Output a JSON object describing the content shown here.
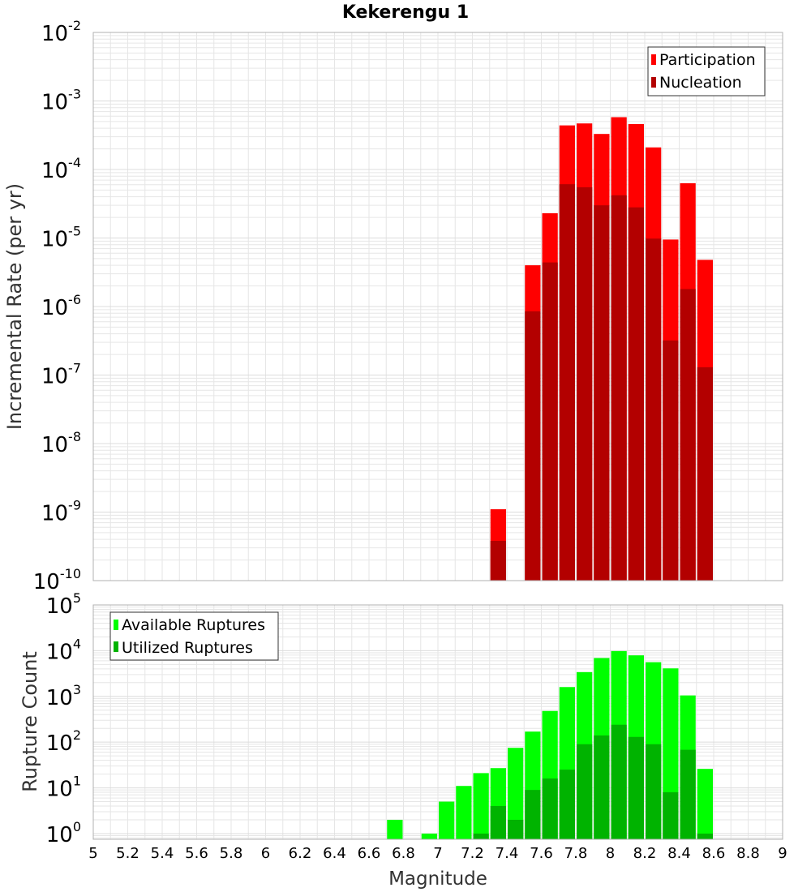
{
  "colors": {
    "participation": "#ff0000",
    "nucleation": "#b30000",
    "available": "#00ff00",
    "utilized": "#00b300",
    "grid": "#e6e6e6",
    "frame": "#b0b0b0"
  },
  "chart_data": [
    {
      "type": "bar",
      "scale": "log",
      "title": "Kekerengu 1",
      "xlabel": "",
      "ylabel": "Incremental Rate (per yr)",
      "xlim": [
        5,
        9
      ],
      "ylim": [
        1e-10,
        0.01
      ],
      "y_ticks": [
        {
          "value": 1e-10,
          "base": "10",
          "exp": "-10"
        },
        {
          "value": 1e-09,
          "base": "10",
          "exp": "-9"
        },
        {
          "value": 1e-08,
          "base": "10",
          "exp": "-8"
        },
        {
          "value": 1e-07,
          "base": "10",
          "exp": "-7"
        },
        {
          "value": 1e-06,
          "base": "10",
          "exp": "-6"
        },
        {
          "value": 1e-05,
          "base": "10",
          "exp": "-5"
        },
        {
          "value": 0.0001,
          "base": "10",
          "exp": "-4"
        },
        {
          "value": 0.001,
          "base": "10",
          "exp": "-3"
        },
        {
          "value": 0.01,
          "base": "10",
          "exp": "-2"
        }
      ],
      "legend_position": "top-right",
      "categories": [
        7.35,
        7.45,
        7.55,
        7.65,
        7.75,
        7.85,
        7.95,
        8.05,
        8.15,
        8.25,
        8.35,
        8.45,
        8.55
      ],
      "series": [
        {
          "name": "Participation",
          "color_key": "participation",
          "values": [
            1.1e-09,
            null,
            4e-06,
            2.3e-05,
            0.00044,
            0.00047,
            0.00033,
            0.00058,
            0.00046,
            0.00021,
            9.5e-06,
            6.3e-05,
            4.8e-06
          ]
        },
        {
          "name": "Nucleation",
          "color_key": "nucleation",
          "values": [
            3.8e-10,
            null,
            8.5e-07,
            4.4e-06,
            6.1e-05,
            5.5e-05,
            3e-05,
            4.2e-05,
            2.8e-05,
            9.8e-06,
            3.2e-07,
            1.8e-06,
            1.3e-07
          ]
        }
      ]
    },
    {
      "type": "bar",
      "scale": "log",
      "title": "",
      "xlabel": "Magnitude",
      "ylabel": "Rupture Count",
      "xlim": [
        5,
        9
      ],
      "ylim": [
        0.75,
        100000.0
      ],
      "x_ticks": [
        "5",
        "5.2",
        "5.4",
        "5.6",
        "5.8",
        "6",
        "6.2",
        "6.4",
        "6.6",
        "6.8",
        "7",
        "7.2",
        "7.4",
        "7.6",
        "7.8",
        "8",
        "8.2",
        "8.4",
        "8.6",
        "8.8",
        "9"
      ],
      "y_ticks": [
        {
          "value": 1,
          "base": "10",
          "exp": "0"
        },
        {
          "value": 10,
          "base": "10",
          "exp": "1"
        },
        {
          "value": 100,
          "base": "10",
          "exp": "2"
        },
        {
          "value": 1000,
          "base": "10",
          "exp": "3"
        },
        {
          "value": 10000,
          "base": "10",
          "exp": "4"
        },
        {
          "value": 100000,
          "base": "10",
          "exp": "5"
        }
      ],
      "legend_position": "top-left",
      "categories": [
        6.75,
        6.85,
        6.95,
        7.05,
        7.15,
        7.25,
        7.35,
        7.45,
        7.55,
        7.65,
        7.75,
        7.85,
        7.95,
        8.05,
        8.15,
        8.25,
        8.35,
        8.45,
        8.55
      ],
      "series": [
        {
          "name": "Available Ruptures",
          "color_key": "available",
          "values": [
            2,
            null,
            1,
            5,
            11,
            21,
            27,
            75,
            170,
            480,
            1600,
            3400,
            6900,
            9800,
            7900,
            5600,
            4100,
            1050,
            26
          ]
        },
        {
          "name": "Utilized Ruptures",
          "color_key": "utilized",
          "values": [
            null,
            null,
            null,
            null,
            null,
            1,
            4,
            2,
            9,
            16,
            25,
            90,
            140,
            240,
            130,
            90,
            8,
            68,
            1
          ]
        }
      ]
    }
  ]
}
